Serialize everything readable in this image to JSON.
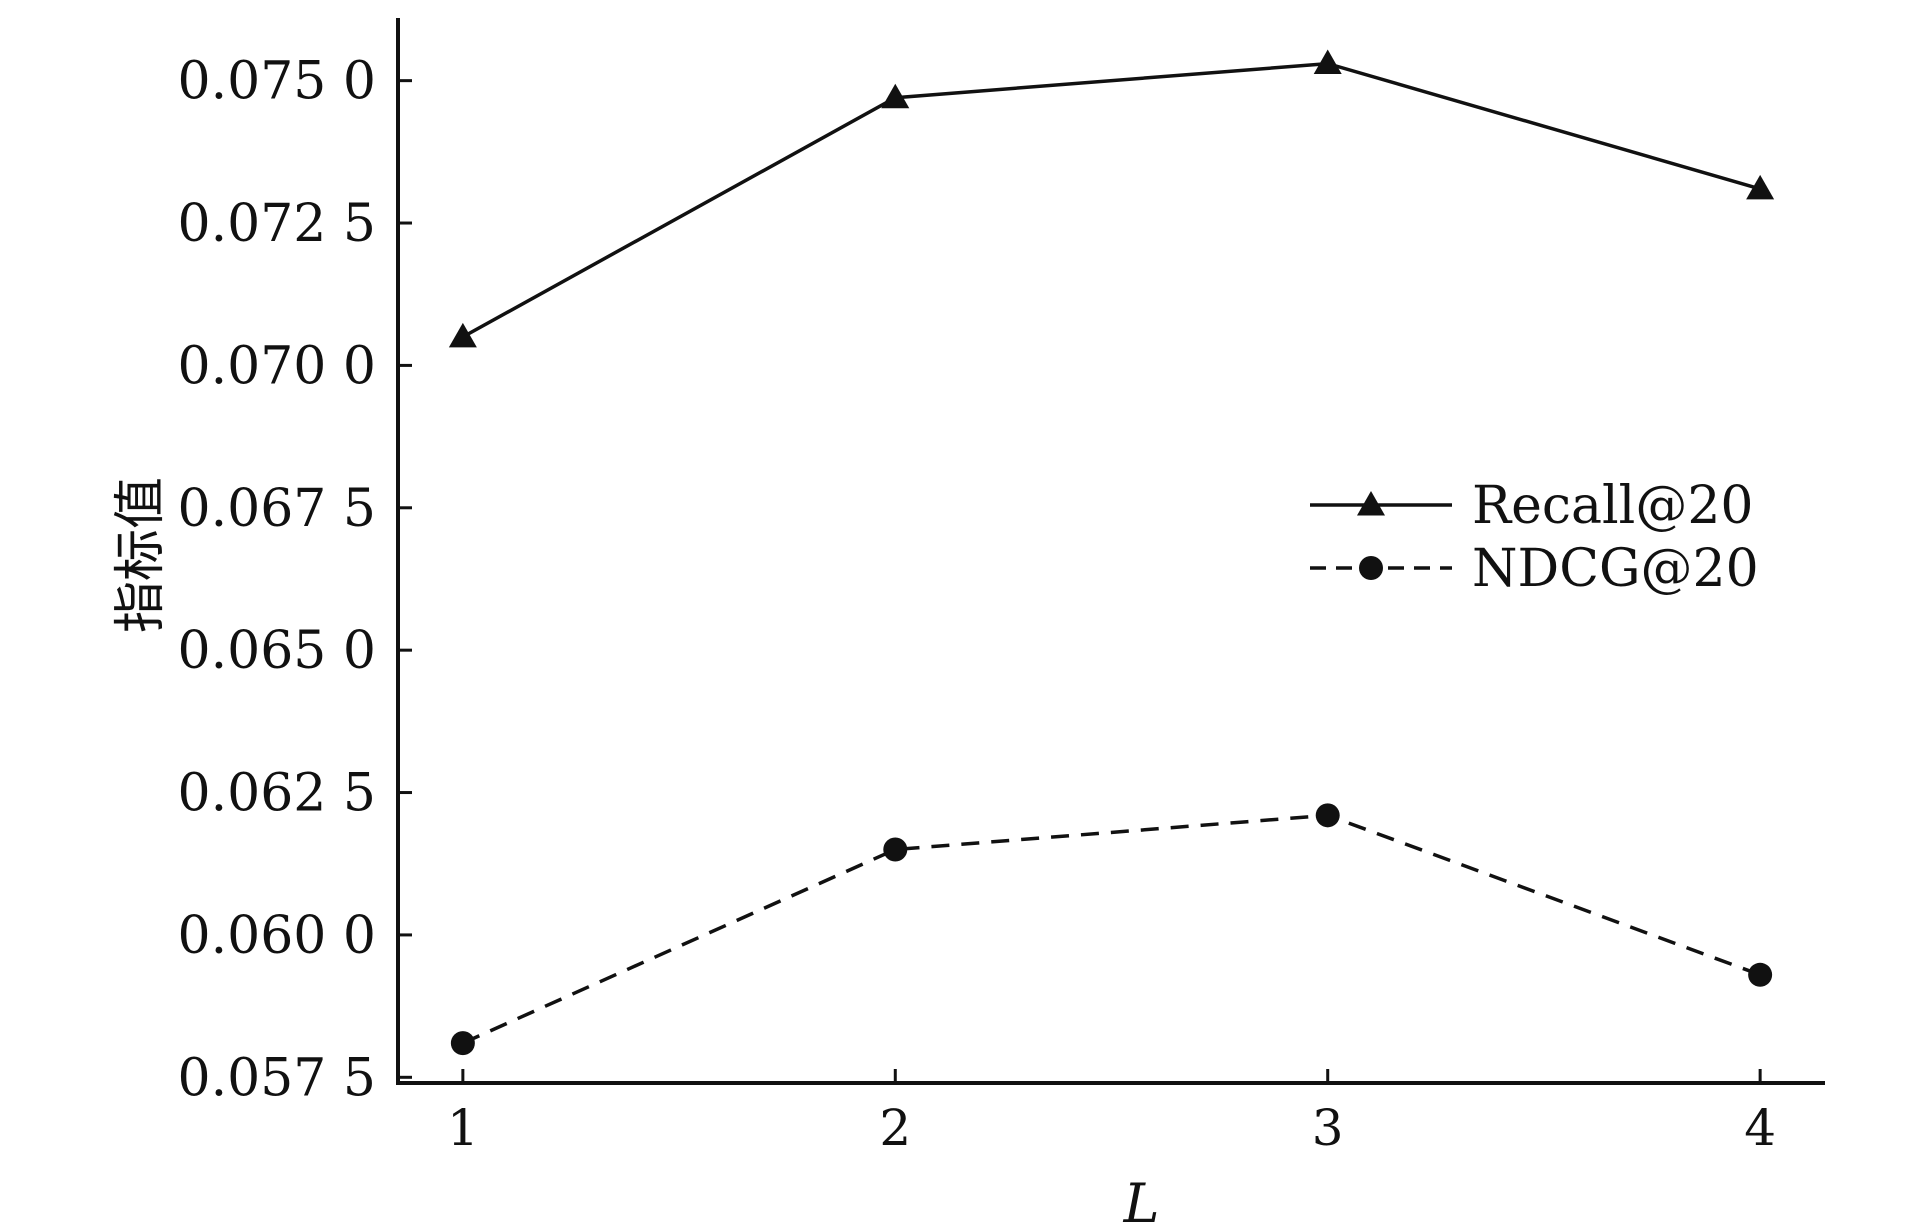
{
  "chart_data": {
    "type": "line",
    "title": "",
    "xlabel": "L",
    "ylabel": "指标值",
    "x": [
      1,
      2,
      3,
      4
    ],
    "x_tick_labels": [
      "1",
      "2",
      "3",
      "4"
    ],
    "y_ticks": [
      0.0575,
      0.06,
      0.0625,
      0.065,
      0.0675,
      0.07,
      0.0725,
      0.075
    ],
    "y_tick_labels": [
      "0.057 5",
      "0.060 0",
      "0.062 5",
      "0.065 0",
      "0.067 5",
      "0.070 0",
      "0.072 5",
      "0.075 0"
    ],
    "ylim": [
      0.0574,
      0.0761
    ],
    "xlim": [
      0.85,
      4.15
    ],
    "grid": false,
    "legend_position": "right",
    "series": [
      {
        "name": "Recall@20",
        "values": [
          0.0705,
          0.0747,
          0.0753,
          0.0731
        ],
        "marker": "triangle",
        "line_style": "solid",
        "color": "#111111"
      },
      {
        "name": "NDCG@20",
        "values": [
          0.0581,
          0.0615,
          0.0621,
          0.0593
        ],
        "marker": "circle",
        "line_style": "dashed",
        "color": "#111111"
      }
    ]
  }
}
